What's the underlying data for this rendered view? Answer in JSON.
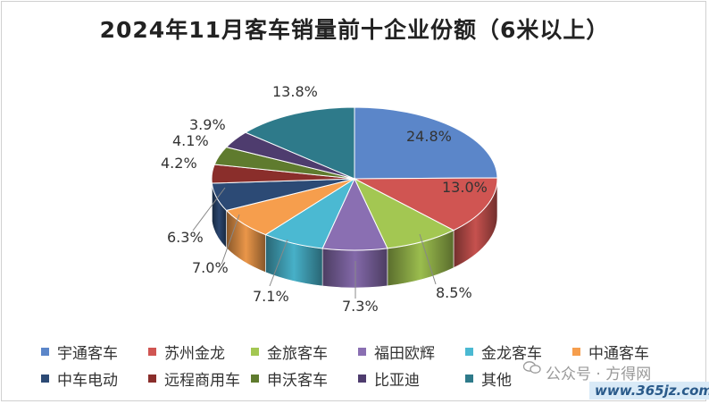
{
  "chart_data": {
    "type": "pie",
    "title": "2024年11月客车销量前十企业份额（6米以上）",
    "categories": [
      "宇通客车",
      "苏州金龙",
      "金旅客车",
      "福田欧辉",
      "金龙客车",
      "中通客车",
      "中车电动",
      "远程商用车",
      "申沃客车",
      "比亚迪",
      "其他"
    ],
    "values": [
      24.8,
      13.0,
      8.5,
      7.3,
      7.1,
      7.0,
      6.3,
      4.2,
      4.1,
      3.9,
      13.8
    ],
    "labels": [
      "24.8%",
      "13.0%",
      "8.5%",
      "7.3%",
      "7.1%",
      "7.0%",
      "6.3%",
      "4.2%",
      "4.1%",
      "3.9%",
      "13.8%"
    ],
    "colors": [
      "#5b86c9",
      "#d05552",
      "#a3c752",
      "#8a6fb2",
      "#4bb9d2",
      "#f69e4d",
      "#2c4a75",
      "#8a2e2b",
      "#5f7b2e",
      "#4e3c6e",
      "#2e7a8a"
    ],
    "legend_position": "bottom"
  },
  "watermark": {
    "text": "公众号 · 方得网",
    "site": "www.365jz.com"
  }
}
